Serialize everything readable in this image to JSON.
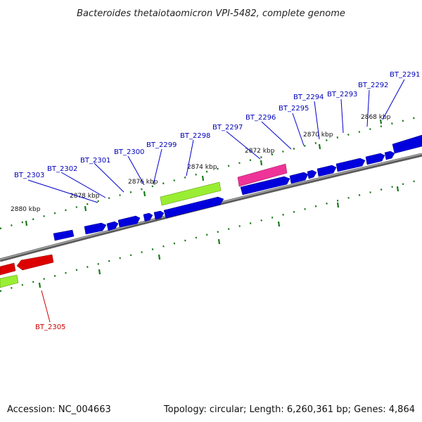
{
  "title": "Bacteroides thetaiotaomicron VPI-5482, complete genome",
  "footer": {
    "accession": "Accession: NC_004663",
    "summary": "Topology: circular; Length: 6,260,361 bp; Genes: 4,864"
  },
  "colors": {
    "backbone": "#808080",
    "forward_gene": "#0000dd",
    "reverse_gene": "#dd0000",
    "rna_gene": "#99ee33",
    "pseudo_gene": "#ee3399",
    "tick": "#1a7a1a",
    "forward_label": "#0000bb",
    "reverse_label": "#cc0000"
  },
  "scale_labels": [
    "2868 kbp",
    "2870 kbp",
    "2872 kbp",
    "2874 kbp",
    "2876 kbp",
    "2878 kbp",
    "2880 kbp"
  ],
  "gene_labels": [
    {
      "name": "BT_2291",
      "strand": "forward"
    },
    {
      "name": "BT_2292",
      "strand": "forward"
    },
    {
      "name": "BT_2293",
      "strand": "forward"
    },
    {
      "name": "BT_2294",
      "strand": "forward"
    },
    {
      "name": "BT_2295",
      "strand": "forward"
    },
    {
      "name": "BT_2296",
      "strand": "forward"
    },
    {
      "name": "BT_2297",
      "strand": "forward"
    },
    {
      "name": "BT_2298",
      "strand": "forward"
    },
    {
      "name": "BT_2299",
      "strand": "forward"
    },
    {
      "name": "BT_2300",
      "strand": "forward"
    },
    {
      "name": "BT_2301",
      "strand": "forward"
    },
    {
      "name": "BT_2302",
      "strand": "forward"
    },
    {
      "name": "BT_2303",
      "strand": "forward"
    },
    {
      "name": "BT_2305",
      "strand": "reverse"
    }
  ]
}
